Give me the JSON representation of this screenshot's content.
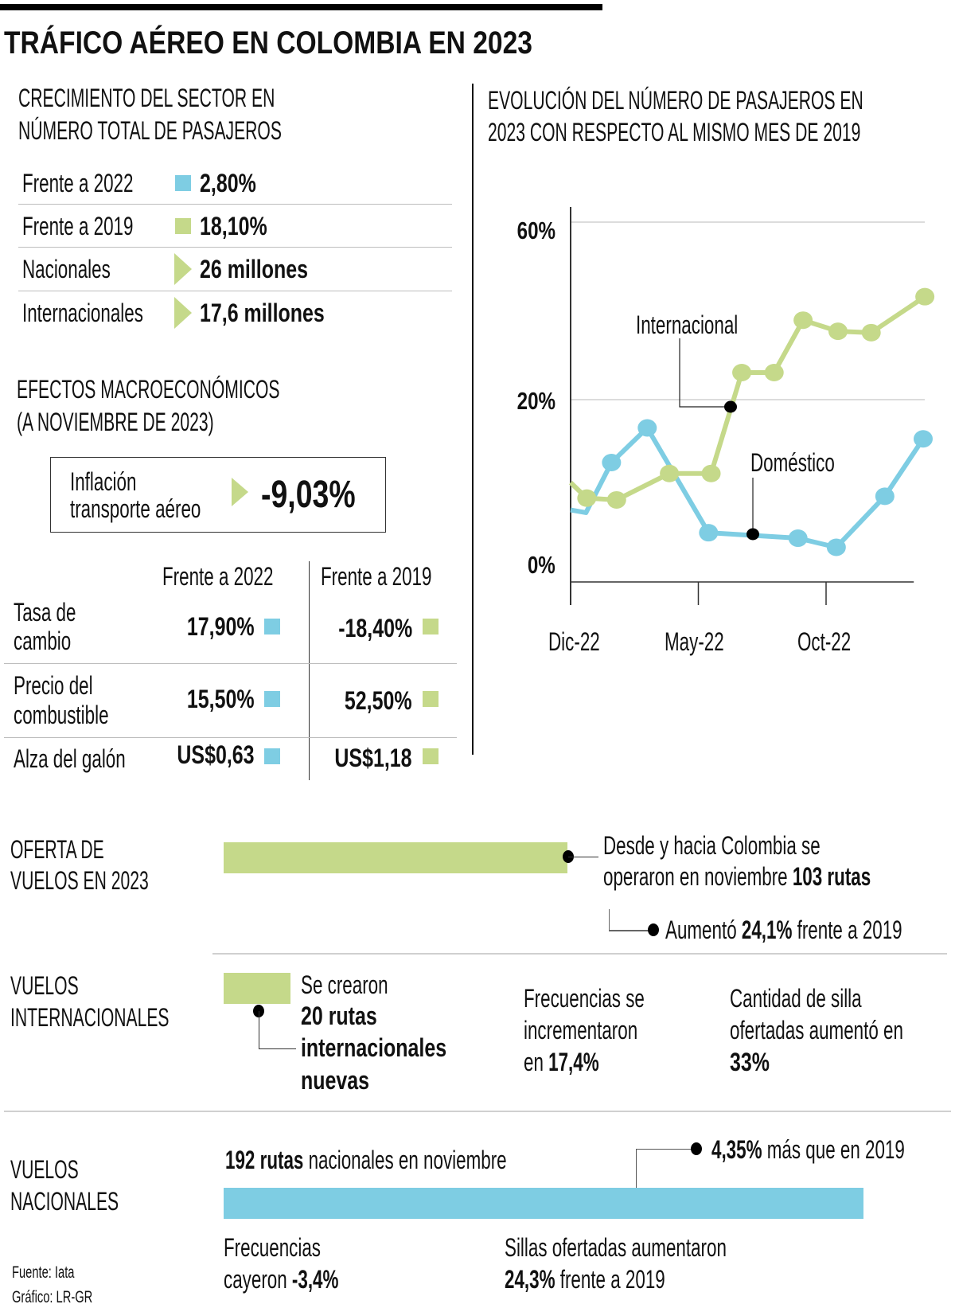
{
  "title": "TRÁFICO AÉREO EN COLOMBIA EN 2023",
  "colors": {
    "blue": "#7ecde3",
    "green": "#c5d98a",
    "text": "#111111"
  },
  "growth": {
    "heading": [
      "CRECIMIENTO DEL SECTOR EN",
      "NÚMERO TOTAL DE PASAJEROS"
    ],
    "rows": [
      {
        "label": "Frente a 2022",
        "value": "2,80%",
        "marker": "blue-square"
      },
      {
        "label": "Frente a 2019",
        "value": "18,10%",
        "marker": "green-square"
      },
      {
        "label": "Nacionales",
        "value": "26 millones",
        "marker": "green-triangle"
      },
      {
        "label": "Internacionales",
        "value": "17,6 millones",
        "marker": "green-triangle"
      }
    ]
  },
  "macro": {
    "heading": [
      "EFECTOS MACROECONÓMICOS",
      "(A NOVIEMBRE DE 2023)"
    ],
    "inflation": {
      "label": [
        "Inflación",
        "transporte aéreo"
      ],
      "value": "-9,03%"
    },
    "columns": [
      "Frente a 2022",
      "Frente a 2019"
    ],
    "rows": [
      {
        "label": [
          "Tasa de",
          "cambio"
        ],
        "v2022": "17,90%",
        "v2019": "-18,40%"
      },
      {
        "label": [
          "Precio del",
          "combustible"
        ],
        "v2022": "15,50%",
        "v2019": "52,50%"
      },
      {
        "label": [
          "Alza del galón"
        ],
        "v2022": "US$0,63",
        "v2019": "US$1,18"
      }
    ]
  },
  "chart_heading": [
    "EVOLUCIÓN DEL NÚMERO DE PASAJEROS EN",
    "2023 CON RESPECTO AL MISMO MES DE 2019"
  ],
  "chart_data": {
    "type": "line",
    "title": "EVOLUCIÓN DEL NÚMERO DE PASAJEROS EN 2023 CON RESPECTO AL MISMO MES DE 2019",
    "y_ticks": [
      0,
      20,
      60
    ],
    "y_tick_labels": [
      "0%",
      "20%",
      "60%"
    ],
    "y_scale": "non-linear (ticks equally spaced)",
    "x_ticks": [
      {
        "label": "Dic-22",
        "date": "2022-12-01"
      },
      {
        "label": "May-22",
        "date": "2023-05-01"
      },
      {
        "label": "Oct-22",
        "date": "2023-10-01"
      }
    ],
    "xlim": [
      "2022-12-01",
      "2024-01-14"
    ],
    "grid": true,
    "series": [
      {
        "name": "Doméstico",
        "color": "#7ecde3",
        "points": [
          {
            "x": "2022-12-01",
            "y": 7.9,
            "marker": false
          },
          {
            "x": "2022-12-19",
            "y": 7.6,
            "marker": false
          },
          {
            "x": "2023-01-19",
            "y": 13.1,
            "marker": true
          },
          {
            "x": "2023-03-01",
            "y": 16.9,
            "marker": true
          },
          {
            "x": "2023-05-13",
            "y": 5.4,
            "marker": true
          },
          {
            "x": "2023-08-28",
            "y": 4.8,
            "marker": true
          },
          {
            "x": "2023-10-13",
            "y": 3.8,
            "marker": true
          },
          {
            "x": "2023-12-10",
            "y": 9.4,
            "marker": true
          },
          {
            "x": "2024-01-25",
            "y": 15.7,
            "marker": true
          }
        ]
      },
      {
        "name": "Internacional",
        "color": "#c5d98a",
        "points": [
          {
            "x": "2022-12-01",
            "y": 10.9,
            "marker": false
          },
          {
            "x": "2022-12-20",
            "y": 9.2,
            "marker": true
          },
          {
            "x": "2023-01-25",
            "y": 9.0,
            "marker": true
          },
          {
            "x": "2023-03-27",
            "y": 11.9,
            "marker": true
          },
          {
            "x": "2023-05-16",
            "y": 11.9,
            "marker": true
          },
          {
            "x": "2023-06-22",
            "y": 26.1,
            "marker": true
          },
          {
            "x": "2023-07-30",
            "y": 26.1,
            "marker": true
          },
          {
            "x": "2023-09-04",
            "y": 37.9,
            "marker": true
          },
          {
            "x": "2023-10-15",
            "y": 35.4,
            "marker": true
          },
          {
            "x": "2023-11-24",
            "y": 35.1,
            "marker": true
          },
          {
            "x": "2024-01-27",
            "y": 43.2,
            "marker": true
          }
        ]
      }
    ]
  },
  "oferta": {
    "heading": [
      "OFERTA DE",
      "VUELOS EN 2023"
    ],
    "line1": "Desde y hacia Colombia se",
    "line2_text": "operaron en noviembre",
    "line2_bold": "103 rutas",
    "note_pre": "Aumentó",
    "note_bold": "24,1%",
    "note_post": "frente a 2019"
  },
  "internacionales": {
    "heading": [
      "VUELOS",
      "INTERNACIONALES"
    ],
    "created": [
      "Se crearon"
    ],
    "created_bold": [
      "20 rutas",
      "internacionales",
      "nuevas"
    ],
    "freq": [
      "Frecuencias se",
      "incrementaron"
    ],
    "freq_pre": "en",
    "freq_bold": "17,4%",
    "seats": [
      "Cantidad de silla",
      "ofertadas aumentó en"
    ],
    "seats_bold": "33%"
  },
  "nacionales": {
    "heading": [
      "VUELOS",
      "NACIONALES"
    ],
    "routes_bold": "192 rutas",
    "routes_text": "nacionales en noviembre",
    "note_bold": "4,35%",
    "note_text": "más que en 2019",
    "freq": "Frecuencias",
    "freq_pre": "cayeron",
    "freq_bold": "-3,4%",
    "seats": "Sillas ofertadas aumentaron",
    "seats_bold": "24,3%",
    "seats_post": "frente a 2019"
  },
  "footer": {
    "source": "Fuente: Iata",
    "credit": "Gráfico: LR-GR"
  }
}
